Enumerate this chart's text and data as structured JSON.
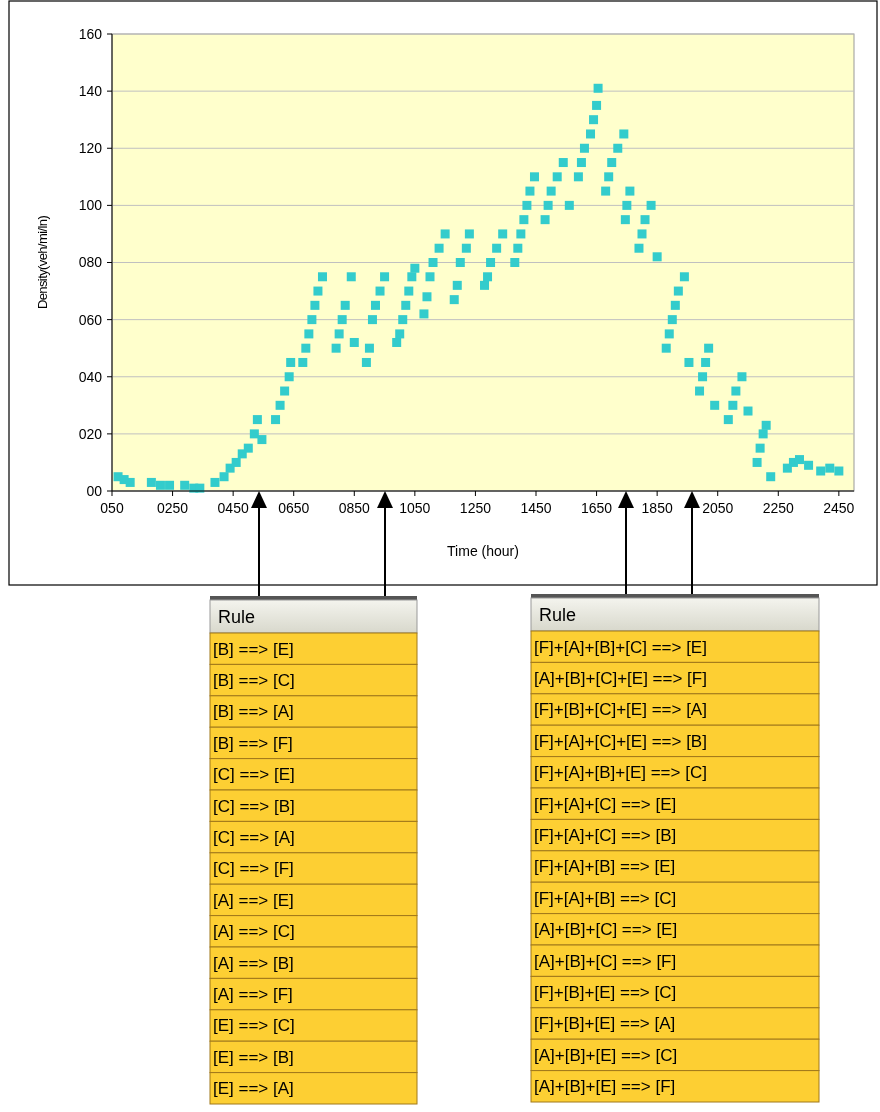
{
  "chart_data": [
    {
      "type": "scatter",
      "xlabel": "Time (hour)",
      "ylabel": "Density(veh/mi/ln)",
      "marker": "square",
      "grid": "y",
      "xlim": [
        50,
        2500
      ],
      "ylim": [
        0,
        160
      ],
      "xticks": [
        {
          "value": 50,
          "label": "050"
        },
        {
          "value": 250,
          "label": "0250"
        },
        {
          "value": 450,
          "label": "0450"
        },
        {
          "value": 650,
          "label": "0650"
        },
        {
          "value": 850,
          "label": "0850"
        },
        {
          "value": 1050,
          "label": "1050"
        },
        {
          "value": 1250,
          "label": "1250"
        },
        {
          "value": 1450,
          "label": "1450"
        },
        {
          "value": 1650,
          "label": "1650"
        },
        {
          "value": 1850,
          "label": "1850"
        },
        {
          "value": 2050,
          "label": "2050"
        },
        {
          "value": 2250,
          "label": "2250"
        },
        {
          "value": 2450,
          "label": "2450"
        }
      ],
      "yticks": [
        {
          "value": 0,
          "label": "00"
        },
        {
          "value": 20,
          "label": "020"
        },
        {
          "value": 40,
          "label": "040"
        },
        {
          "value": 60,
          "label": "060"
        },
        {
          "value": 80,
          "label": "080"
        },
        100,
        120,
        140,
        160
      ],
      "series": [
        {
          "color": "#33cccc",
          "x": [
            70,
            90,
            110,
            180,
            210,
            240,
            290,
            320,
            340,
            390,
            420,
            440,
            460,
            480,
            500,
            520,
            530,
            545,
            590,
            605,
            620,
            635,
            640,
            680,
            690,
            700,
            710,
            720,
            730,
            745,
            790,
            800,
            810,
            820,
            840,
            850,
            890,
            900,
            910,
            920,
            935,
            950,
            990,
            1000,
            1010,
            1020,
            1030,
            1040,
            1050,
            1080,
            1090,
            1100,
            1110,
            1130,
            1150,
            1180,
            1190,
            1200,
            1220,
            1230,
            1280,
            1290,
            1300,
            1320,
            1340,
            1380,
            1390,
            1400,
            1410,
            1420,
            1430,
            1445,
            1480,
            1490,
            1500,
            1520,
            1540,
            1560,
            1590,
            1600,
            1610,
            1630,
            1640,
            1650,
            1655,
            1680,
            1690,
            1700,
            1720,
            1740,
            1745,
            1750,
            1760,
            1790,
            1800,
            1810,
            1830,
            1850,
            1880,
            1890,
            1900,
            1910,
            1920,
            1940,
            1955,
            1990,
            2000,
            2010,
            2020,
            2040,
            2085,
            2100,
            2110,
            2130,
            2150,
            2180,
            2190,
            2200,
            2210,
            2225,
            2280,
            2300,
            2320,
            2350,
            2390,
            2420,
            2450
          ],
          "values": [
            5,
            4,
            3,
            3,
            2,
            2,
            2,
            1,
            1,
            3,
            5,
            8,
            10,
            13,
            15,
            20,
            25,
            18,
            25,
            30,
            35,
            40,
            45,
            45,
            50,
            55,
            60,
            65,
            70,
            75,
            50,
            55,
            60,
            65,
            75,
            52,
            45,
            50,
            60,
            65,
            70,
            75,
            52,
            55,
            60,
            65,
            70,
            75,
            78,
            62,
            68,
            75,
            80,
            85,
            90,
            67,
            72,
            80,
            85,
            90,
            72,
            75,
            80,
            85,
            90,
            80,
            85,
            90,
            95,
            100,
            105,
            110,
            95,
            100,
            105,
            110,
            115,
            100,
            110,
            115,
            120,
            125,
            130,
            135,
            141,
            105,
            110,
            115,
            120,
            125,
            95,
            100,
            105,
            85,
            90,
            95,
            100,
            82,
            50,
            55,
            60,
            65,
            70,
            75,
            45,
            35,
            40,
            45,
            50,
            30,
            25,
            30,
            35,
            40,
            28,
            10,
            15,
            20,
            23,
            5,
            8,
            10,
            11,
            9,
            7,
            8,
            7
          ]
        }
      ]
    },
    {
      "type": "other",
      "title": "Rule",
      "annotations": [
        "[B] ==> [E]",
        "[B] ==> [C]",
        "[B] ==> [A]",
        "[B] ==> [F]",
        "[C] ==> [E]",
        "[C] ==> [B]",
        "[C] ==> [A]",
        "[C] ==> [F]",
        "[A] ==> [E]",
        "[A] ==> [C]",
        "[A] ==> [B]",
        "[A] ==> [F]",
        "[E] ==> [C]",
        "[E] ==> [B]",
        "[E] ==> [A]"
      ]
    },
    {
      "type": "other",
      "title": "Rule",
      "annotations": [
        "[F]+[A]+[B]+[C] ==> [E]",
        "[A]+[B]+[C]+[E] ==> [F]",
        "[F]+[B]+[C]+[E] ==> [A]",
        "[F]+[A]+[C]+[E] ==> [B]",
        "[F]+[A]+[B]+[E] ==> [C]",
        "[F]+[A]+[C] ==> [E]",
        "[F]+[A]+[C] ==> [B]",
        "[F]+[A]+[B] ==> [E]",
        "[F]+[A]+[B] ==> [C]",
        "[A]+[B]+[C] ==> [E]",
        "[A]+[B]+[C] ==> [F]",
        "[F]+[B]+[E] ==> [C]",
        "[F]+[B]+[E] ==> [A]",
        "[A]+[B]+[E] ==> [C]",
        "[A]+[B]+[E] ==> [F]"
      ]
    }
  ]
}
